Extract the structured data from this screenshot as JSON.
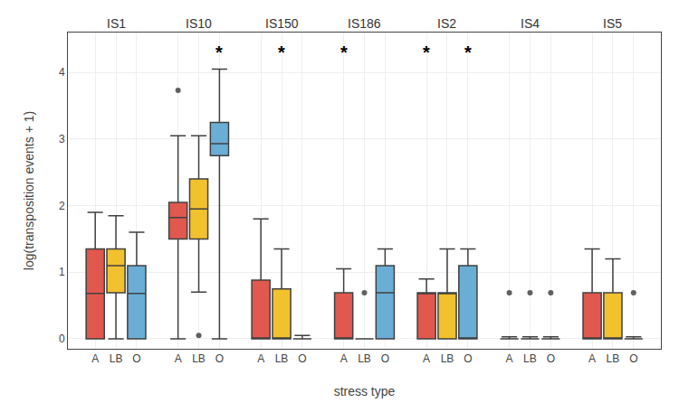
{
  "chart_data": {
    "type": "box",
    "xlabel": "stress type",
    "ylabel": "log(transposition events + 1)",
    "ylim": [
      -0.15,
      4.6
    ],
    "yticks": [
      0,
      1,
      2,
      3,
      4
    ],
    "grid": true,
    "groups": [
      "IS1",
      "IS10",
      "IS150",
      "IS186",
      "IS2",
      "IS4",
      "IS5"
    ],
    "series": [
      {
        "name": "A",
        "color": "#E0584E",
        "values": [
          {
            "q1": 0.0,
            "median": 0.68,
            "q3": 1.35,
            "whislo": 0.0,
            "whishi": 1.9,
            "fliers": []
          },
          {
            "q1": 1.5,
            "median": 1.82,
            "q3": 2.05,
            "whislo": 0.0,
            "whishi": 3.05,
            "fliers": [
              3.73
            ]
          },
          {
            "q1": 0.0,
            "median": 0.0,
            "q3": 0.88,
            "whislo": 0.0,
            "whishi": 1.8,
            "fliers": []
          },
          {
            "q1": 0.0,
            "median": 0.0,
            "q3": 0.69,
            "whislo": 0.0,
            "whishi": 1.05,
            "fliers": []
          },
          {
            "q1": 0.0,
            "median": 0.69,
            "q3": 0.69,
            "whislo": 0.0,
            "whishi": 0.9,
            "fliers": []
          },
          {
            "q1": 0.0,
            "median": 0.0,
            "q3": 0.0,
            "whislo": 0.0,
            "whishi": 0.03,
            "fliers": [
              0.69
            ]
          },
          {
            "q1": 0.0,
            "median": 0.0,
            "q3": 0.69,
            "whislo": 0.0,
            "whishi": 1.35,
            "fliers": []
          }
        ]
      },
      {
        "name": "LB",
        "color": "#F2C12E",
        "values": [
          {
            "q1": 0.69,
            "median": 1.1,
            "q3": 1.35,
            "whislo": 0.0,
            "whishi": 1.85,
            "fliers": []
          },
          {
            "q1": 1.5,
            "median": 1.95,
            "q3": 2.4,
            "whislo": 0.7,
            "whishi": 3.05,
            "fliers": [
              0.05
            ]
          },
          {
            "q1": 0.0,
            "median": 0.0,
            "q3": 0.75,
            "whislo": 0.0,
            "whishi": 1.35,
            "fliers": []
          },
          {
            "q1": 0.0,
            "median": 0.0,
            "q3": 0.0,
            "whislo": 0.0,
            "whishi": 0.0,
            "fliers": [
              0.69
            ]
          },
          {
            "q1": 0.0,
            "median": 0.69,
            "q3": 0.69,
            "whislo": 0.0,
            "whishi": 1.35,
            "fliers": []
          },
          {
            "q1": 0.0,
            "median": 0.0,
            "q3": 0.0,
            "whislo": 0.0,
            "whishi": 0.03,
            "fliers": [
              0.69
            ]
          },
          {
            "q1": 0.0,
            "median": 0.0,
            "q3": 0.69,
            "whislo": 0.0,
            "whishi": 1.2,
            "fliers": []
          }
        ]
      },
      {
        "name": "O",
        "color": "#6AAED6",
        "values": [
          {
            "q1": 0.0,
            "median": 0.68,
            "q3": 1.1,
            "whislo": 0.0,
            "whishi": 1.6,
            "fliers": []
          },
          {
            "q1": 2.75,
            "median": 2.93,
            "q3": 3.25,
            "whislo": 0.0,
            "whishi": 4.05,
            "fliers": []
          },
          {
            "q1": 0.0,
            "median": 0.0,
            "q3": 0.0,
            "whislo": 0.0,
            "whishi": 0.05,
            "fliers": []
          },
          {
            "q1": 0.0,
            "median": 0.69,
            "q3": 1.1,
            "whislo": 0.0,
            "whishi": 1.35,
            "fliers": []
          },
          {
            "q1": 0.0,
            "median": 0.0,
            "q3": 1.1,
            "whislo": 0.0,
            "whishi": 1.35,
            "fliers": []
          },
          {
            "q1": 0.0,
            "median": 0.0,
            "q3": 0.0,
            "whislo": 0.0,
            "whishi": 0.03,
            "fliers": [
              0.69
            ]
          },
          {
            "q1": 0.0,
            "median": 0.0,
            "q3": 0.0,
            "whislo": 0.0,
            "whishi": 0.03,
            "fliers": [
              0.69
            ]
          }
        ]
      }
    ],
    "annotations": [
      {
        "group": "IS10",
        "series": "O",
        "text": "*"
      },
      {
        "group": "IS150",
        "series": "LB",
        "text": "*"
      },
      {
        "group": "IS186",
        "series": "A",
        "text": "*"
      },
      {
        "group": "IS2",
        "series": "A",
        "text": "*"
      },
      {
        "group": "IS2",
        "series": "O",
        "text": "*"
      }
    ]
  }
}
